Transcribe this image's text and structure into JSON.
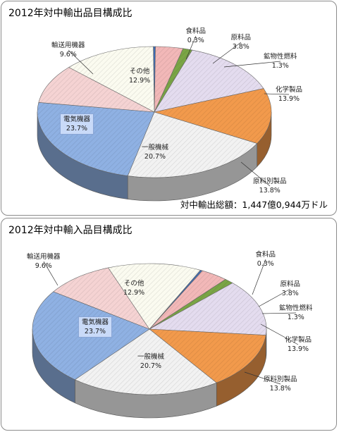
{
  "chart_data": [
    {
      "type": "pie",
      "title": "2012年対中輸出品目構成比",
      "annotation": "対中輸出総額：1,447億0,944万ドル",
      "slices": [
        {
          "label": "食料品",
          "value": 0.3,
          "display": "0.3%",
          "color": "#3d6bb3"
        },
        {
          "label": "原料品",
          "value": 3.8,
          "display": "3.8%",
          "color": "#f2b8b8"
        },
        {
          "label": "鉱物性燃料",
          "value": 1.3,
          "display": "1.3%",
          "color": "#7aa545"
        },
        {
          "label": "化学製品",
          "value": 13.9,
          "display": "13.9%",
          "color": "#e4dcef"
        },
        {
          "label": "原料別製品",
          "value": 13.8,
          "display": "13.8%",
          "color": "#f29a4c"
        },
        {
          "label": "一般機械",
          "value": 20.7,
          "display": "20.7%",
          "color": "#f2f2f2"
        },
        {
          "label": "電気機器",
          "value": 23.7,
          "display": "23.7%",
          "color": "#8fb1e3"
        },
        {
          "label": "輸送用機器",
          "value": 9.6,
          "display": "9.6%",
          "color": "#f5d3d3"
        },
        {
          "label": "その他",
          "value": 12.9,
          "display": "12.9%",
          "color": "#fbfbf0"
        }
      ]
    },
    {
      "type": "pie",
      "title": "2012年対中輸入品目構成比",
      "slices": [
        {
          "label": "食料品",
          "value": 0.3,
          "display": "0.3%",
          "color": "#3d6bb3"
        },
        {
          "label": "原料品",
          "value": 3.8,
          "display": "3.8%",
          "color": "#f2b8b8"
        },
        {
          "label": "鉱物性燃料",
          "value": 1.3,
          "display": "1.3%",
          "color": "#7aa545"
        },
        {
          "label": "化学製品",
          "value": 13.9,
          "display": "13.9%",
          "color": "#e4dcef"
        },
        {
          "label": "原料別製品",
          "value": 13.8,
          "display": "13.8%",
          "color": "#f29a4c"
        },
        {
          "label": "一般機械",
          "value": 20.7,
          "display": "20.7%",
          "color": "#f2f2f2"
        },
        {
          "label": "電気機器",
          "value": 23.7,
          "display": "23.7%",
          "color": "#8fb1e3"
        },
        {
          "label": "輸送用機器",
          "value": 9.6,
          "display": "9.6%",
          "color": "#f5d3d3"
        },
        {
          "label": "その他",
          "value": 12.9,
          "display": "12.9%",
          "color": "#fbfbf0"
        }
      ]
    }
  ]
}
